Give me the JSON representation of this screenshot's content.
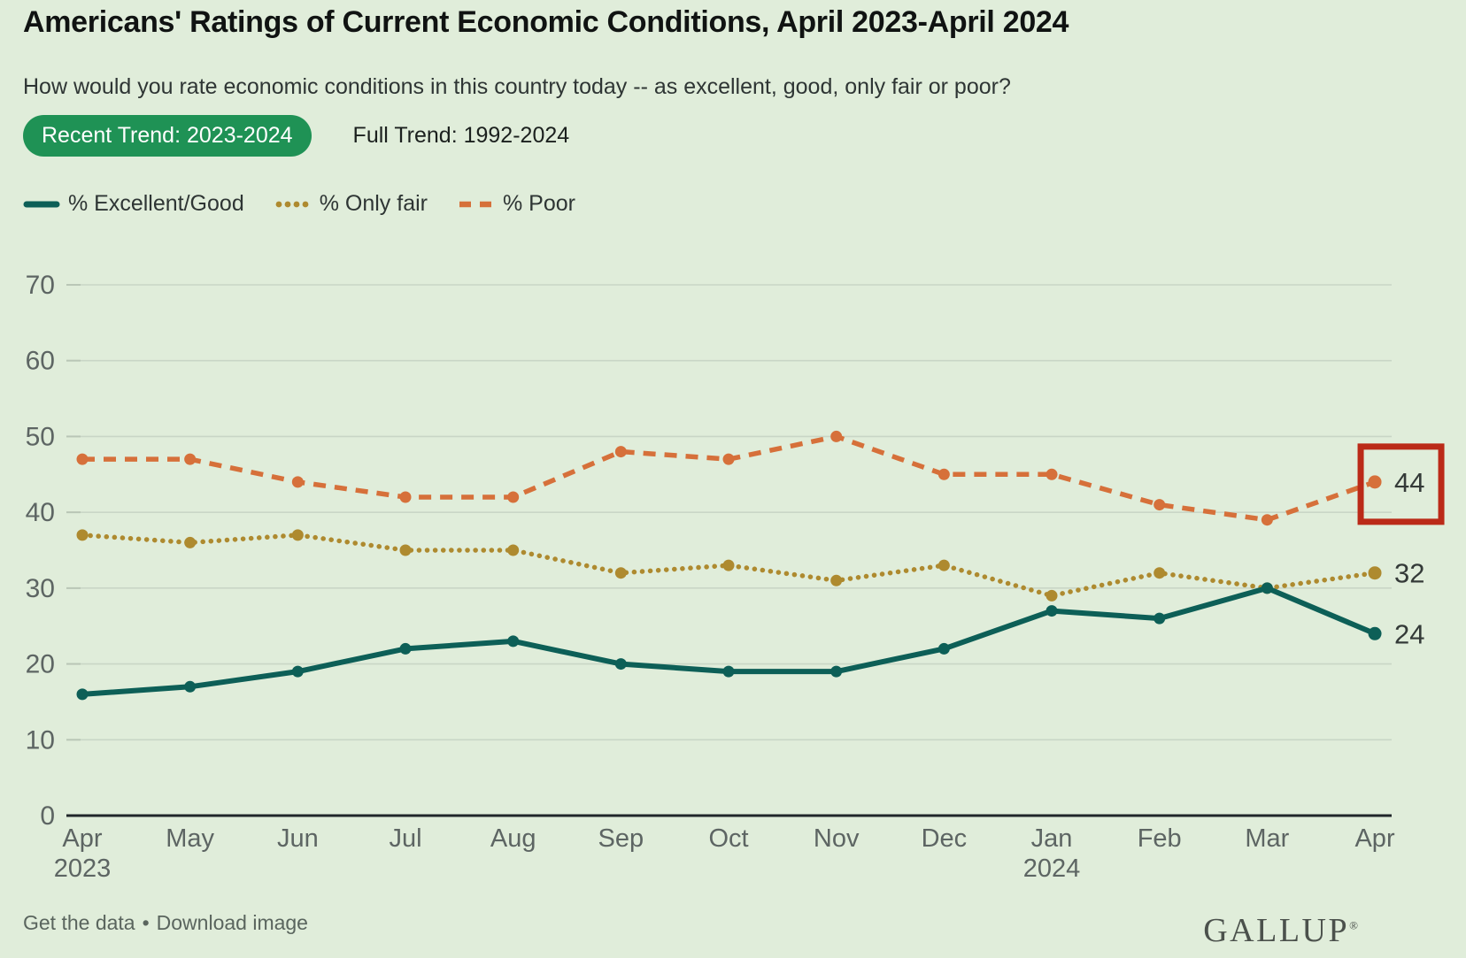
{
  "header": {
    "title": "Americans' Ratings of Current Economic Conditions, April 2023-April 2024",
    "subtitle": "How would you rate economic conditions in this country today -- as excellent, good, only fair or poor?",
    "tabs": [
      {
        "label": "Recent Trend: 2023-2024",
        "active": true
      },
      {
        "label": "Full Trend: 1992-2024",
        "active": false
      }
    ]
  },
  "legend": [
    {
      "label": "% Excellent/Good",
      "swatch": "solid",
      "color": "#0d5f57"
    },
    {
      "label": "% Only fair",
      "swatch": "dotted",
      "color": "#ae8a2f"
    },
    {
      "label": "% Poor",
      "swatch": "dashed",
      "color": "#d6703a"
    }
  ],
  "chart_data": {
    "type": "line",
    "title": "Americans' Ratings of Current Economic Conditions, April 2023-April 2024",
    "categories": [
      {
        "label": "Apr",
        "sub": "2023"
      },
      {
        "label": "May"
      },
      {
        "label": "Jun"
      },
      {
        "label": "Jul"
      },
      {
        "label": "Aug"
      },
      {
        "label": "Sep"
      },
      {
        "label": "Oct"
      },
      {
        "label": "Nov"
      },
      {
        "label": "Dec"
      },
      {
        "label": "Jan",
        "sub": "2024"
      },
      {
        "label": "Feb"
      },
      {
        "label": "Mar"
      },
      {
        "label": "Apr"
      }
    ],
    "series": [
      {
        "name": "% Excellent/Good",
        "style": "solid",
        "color": "#0d5f57",
        "values": [
          16,
          17,
          19,
          22,
          23,
          20,
          19,
          19,
          22,
          27,
          26,
          30,
          24
        ],
        "end_label": "24"
      },
      {
        "name": "% Only fair",
        "style": "dotted",
        "color": "#ae8a2f",
        "values": [
          37,
          36,
          37,
          35,
          35,
          32,
          33,
          31,
          33,
          29,
          32,
          30,
          32
        ],
        "end_label": "32"
      },
      {
        "name": "% Poor",
        "style": "dashed",
        "color": "#d6703a",
        "values": [
          47,
          47,
          44,
          42,
          42,
          48,
          47,
          50,
          45,
          45,
          41,
          39,
          44
        ],
        "end_label": "44"
      }
    ],
    "y_ticks": [
      0,
      10,
      20,
      30,
      40,
      50,
      60,
      70
    ],
    "ylim": [
      0,
      70
    ],
    "grid": true,
    "legend_position": "top-left",
    "highlight_box": {
      "series": "% Poor",
      "point_index": 12,
      "label_value": "44",
      "color": "#bb2a18"
    }
  },
  "footer": {
    "links": [
      "Get the data",
      "Download image"
    ],
    "separator": "•",
    "brand": "GALLUP",
    "brand_mark": "®"
  },
  "colors": {
    "background": "#e0edda",
    "tab_active_bg": "#1f9255",
    "tab_active_text": "#ffffff",
    "gridline": "#c9d6c6",
    "grid_tick": "#b9c6b6",
    "axis": "#20262a",
    "tick_label": "#5d6563",
    "end_label": "#343a38",
    "highlight_box": "#bb2a18"
  }
}
